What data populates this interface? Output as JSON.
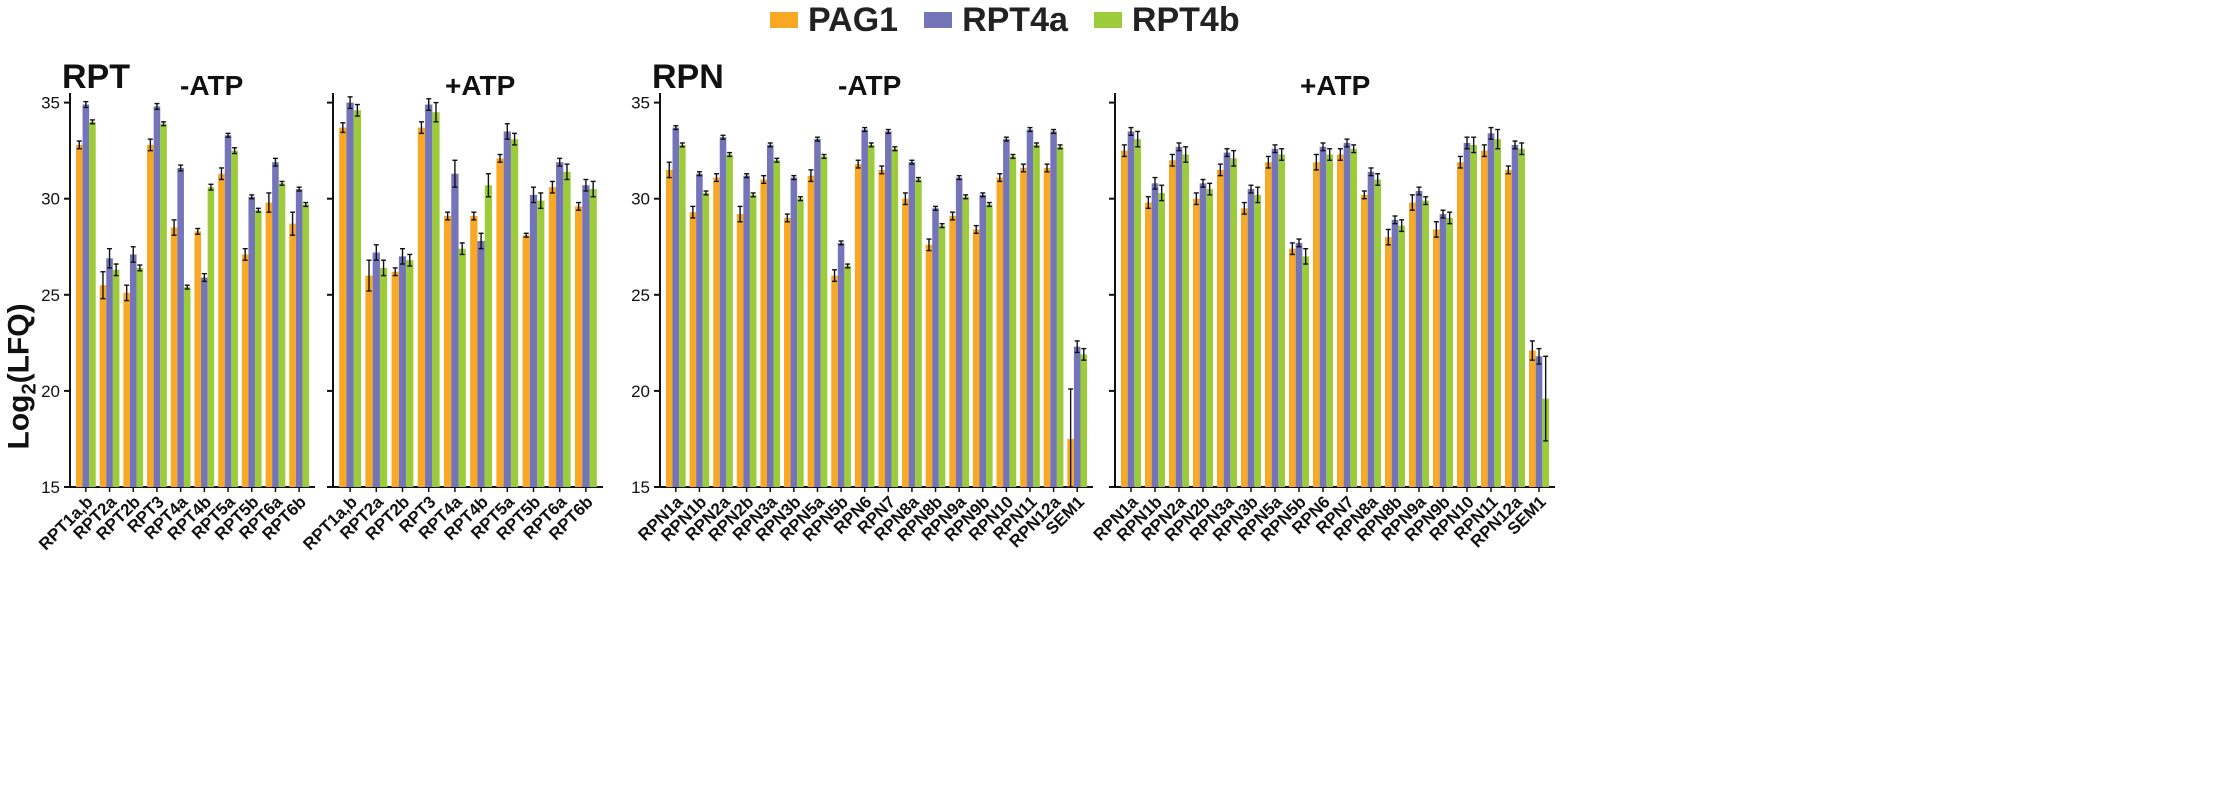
{
  "legend": [
    {
      "name": "PAG1",
      "color": "#F9A825"
    },
    {
      "name": "RPT4a",
      "color": "#7474B8"
    },
    {
      "name": "RPT4b",
      "color": "#9DCC3A"
    }
  ],
  "y_axis_label_main": "Log",
  "y_axis_label_sub": "2",
  "y_axis_label_rest": "(LFQ)",
  "groups": [
    {
      "title": "RPT"
    },
    {
      "title": "RPN"
    }
  ],
  "chart_data": [
    {
      "type": "bar",
      "title": "-ATP",
      "group": "RPT",
      "ylim": [
        15,
        35.5
      ],
      "yticks": [
        15,
        20,
        25,
        30,
        35
      ],
      "categories": [
        "RPT1a,b",
        "RPT2a",
        "RPT2b",
        "RPT3",
        "RPT4a",
        "RPT4b",
        "RPT5a",
        "RPT5b",
        "RPT6a",
        "RPT6b"
      ],
      "series": [
        {
          "name": "PAG1",
          "values": [
            32.8,
            25.5,
            25.1,
            32.8,
            28.5,
            28.3,
            31.3,
            27.1,
            29.8,
            28.7
          ],
          "errors": [
            0.2,
            0.7,
            0.4,
            0.3,
            0.4,
            0.15,
            0.3,
            0.3,
            0.5,
            0.6
          ]
        },
        {
          "name": "RPT4a",
          "values": [
            34.9,
            26.9,
            27.1,
            34.8,
            31.6,
            25.9,
            33.3,
            30.1,
            31.9,
            30.5
          ],
          "errors": [
            0.15,
            0.5,
            0.4,
            0.15,
            0.15,
            0.2,
            0.1,
            0.1,
            0.2,
            0.1
          ]
        },
        {
          "name": "RPT4b",
          "values": [
            34.0,
            26.3,
            26.4,
            33.9,
            25.4,
            30.6,
            32.5,
            29.4,
            30.8,
            29.7
          ],
          "errors": [
            0.1,
            0.3,
            0.15,
            0.1,
            0.1,
            0.15,
            0.15,
            0.1,
            0.1,
            0.1
          ]
        }
      ]
    },
    {
      "type": "bar",
      "title": "+ATP",
      "group": "RPT",
      "ylim": [
        15,
        35.5
      ],
      "yticks": [
        15,
        20,
        25,
        30,
        35
      ],
      "categories": [
        "RPT1a,b",
        "RPT2a",
        "RPT2b",
        "RPT3",
        "RPT4a",
        "RPT4b",
        "RPT5a",
        "RPT5b",
        "RPT6a",
        "RPT6b"
      ],
      "series": [
        {
          "name": "PAG1",
          "values": [
            33.7,
            26.0,
            26.2,
            33.7,
            29.1,
            29.1,
            32.1,
            28.1,
            30.6,
            29.6
          ],
          "errors": [
            0.25,
            0.8,
            0.2,
            0.3,
            0.2,
            0.2,
            0.2,
            0.1,
            0.3,
            0.2
          ]
        },
        {
          "name": "RPT4a",
          "values": [
            35.0,
            27.2,
            27.0,
            34.9,
            31.3,
            27.8,
            33.5,
            30.2,
            31.9,
            30.7
          ],
          "errors": [
            0.3,
            0.4,
            0.4,
            0.3,
            0.7,
            0.4,
            0.4,
            0.4,
            0.2,
            0.3
          ]
        },
        {
          "name": "RPT4b",
          "values": [
            34.6,
            26.4,
            26.8,
            34.5,
            27.4,
            30.7,
            33.1,
            29.9,
            31.4,
            30.5
          ],
          "errors": [
            0.3,
            0.4,
            0.3,
            0.5,
            0.3,
            0.6,
            0.3,
            0.4,
            0.4,
            0.4
          ]
        }
      ]
    },
    {
      "type": "bar",
      "title": "-ATP",
      "group": "RPN",
      "ylim": [
        15,
        35.5
      ],
      "yticks": [
        15,
        20,
        25,
        30,
        35
      ],
      "categories": [
        "RPN1a",
        "RPN1b",
        "RPN2a",
        "RPN2b",
        "RPN3a",
        "RPN3b",
        "RPN5a",
        "RPN5b",
        "RPN6",
        "RPN7",
        "RPN8a",
        "RPN8b",
        "RPN9a",
        "RPN9b",
        "RPN10",
        "RPN11",
        "RPN12a",
        "SEM1"
      ],
      "series": [
        {
          "name": "PAG1",
          "values": [
            31.5,
            29.3,
            31.1,
            29.2,
            31.0,
            29.0,
            31.2,
            26.0,
            31.8,
            31.5,
            30.0,
            27.6,
            29.1,
            28.4,
            31.1,
            31.6,
            31.6,
            17.5
          ],
          "errors": [
            0.4,
            0.3,
            0.2,
            0.4,
            0.2,
            0.2,
            0.3,
            0.3,
            0.2,
            0.2,
            0.3,
            0.3,
            0.2,
            0.2,
            0.2,
            0.2,
            0.2,
            2.6
          ]
        },
        {
          "name": "RPT4a",
          "values": [
            33.7,
            31.3,
            33.2,
            31.2,
            32.8,
            31.1,
            33.1,
            27.7,
            33.6,
            33.5,
            31.9,
            29.5,
            31.1,
            30.2,
            33.1,
            33.6,
            33.5,
            22.3
          ],
          "errors": [
            0.1,
            0.1,
            0.1,
            0.1,
            0.1,
            0.1,
            0.1,
            0.1,
            0.1,
            0.1,
            0.1,
            0.1,
            0.1,
            0.1,
            0.1,
            0.1,
            0.1,
            0.3
          ]
        },
        {
          "name": "RPT4b",
          "values": [
            32.8,
            30.3,
            32.3,
            30.2,
            32.0,
            30.0,
            32.2,
            26.5,
            32.8,
            32.6,
            31.0,
            28.6,
            30.1,
            29.7,
            32.2,
            32.8,
            32.7,
            21.9
          ],
          "errors": [
            0.1,
            0.1,
            0.1,
            0.1,
            0.1,
            0.1,
            0.1,
            0.1,
            0.1,
            0.1,
            0.1,
            0.1,
            0.1,
            0.1,
            0.1,
            0.1,
            0.1,
            0.3
          ]
        }
      ]
    },
    {
      "type": "bar",
      "title": "+ATP",
      "group": "RPN",
      "ylim": [
        15,
        35.5
      ],
      "yticks": [
        15,
        20,
        25,
        30,
        35
      ],
      "categories": [
        "RPN1a",
        "RPN1b",
        "RPN2a",
        "RPN2b",
        "RPN3a",
        "RPN3b",
        "RPN5a",
        "RPN5b",
        "RPN6",
        "RPN7",
        "RPN8a",
        "RPN8b",
        "RPN9a",
        "RPN9b",
        "RPN10",
        "RPN11",
        "RPN12a",
        "SEM1"
      ],
      "series": [
        {
          "name": "PAG1",
          "values": [
            32.5,
            29.8,
            32.0,
            30.0,
            31.5,
            29.5,
            31.9,
            27.4,
            31.9,
            32.3,
            30.2,
            28.0,
            29.8,
            28.4,
            31.9,
            32.5,
            31.5,
            22.1
          ],
          "errors": [
            0.3,
            0.3,
            0.3,
            0.3,
            0.3,
            0.3,
            0.3,
            0.3,
            0.4,
            0.3,
            0.2,
            0.4,
            0.4,
            0.4,
            0.3,
            0.3,
            0.2,
            0.5
          ]
        },
        {
          "name": "RPT4a",
          "values": [
            33.5,
            30.8,
            32.7,
            30.8,
            32.4,
            30.5,
            32.6,
            27.7,
            32.7,
            32.9,
            31.4,
            28.9,
            30.4,
            29.2,
            32.9,
            33.4,
            32.8,
            21.8
          ],
          "errors": [
            0.2,
            0.3,
            0.2,
            0.2,
            0.2,
            0.2,
            0.2,
            0.2,
            0.2,
            0.2,
            0.2,
            0.2,
            0.2,
            0.2,
            0.3,
            0.3,
            0.2,
            0.4
          ]
        },
        {
          "name": "RPT4b",
          "values": [
            33.1,
            30.3,
            32.3,
            30.5,
            32.1,
            30.2,
            32.3,
            27.0,
            32.3,
            32.6,
            31.0,
            28.6,
            29.9,
            29.0,
            32.8,
            33.1,
            32.6,
            19.6
          ],
          "errors": [
            0.4,
            0.4,
            0.4,
            0.3,
            0.4,
            0.4,
            0.3,
            0.4,
            0.3,
            0.2,
            0.3,
            0.3,
            0.2,
            0.3,
            0.4,
            0.5,
            0.3,
            2.2
          ]
        }
      ]
    }
  ]
}
